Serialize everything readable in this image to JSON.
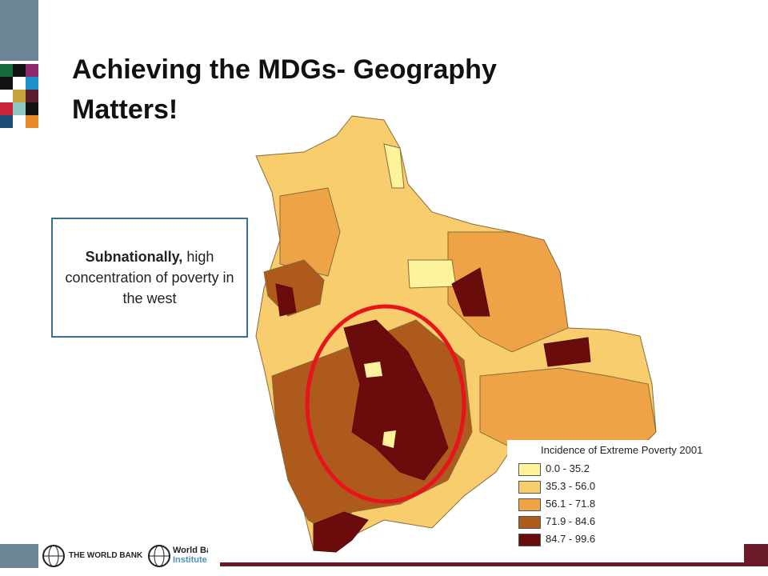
{
  "header": {
    "title": "Achieving the MDGs- Geography Matters!"
  },
  "callout": {
    "bold": "Subnationally,",
    "text": "high concentration of poverty in the west"
  },
  "legend": {
    "title": "Incidence of Extreme Poverty 2001",
    "items": [
      {
        "label": "0.0 - 35.2",
        "color": "#fdf39a"
      },
      {
        "label": "35.3 - 56.0",
        "color": "#f8cd6e"
      },
      {
        "label": "56.1 - 71.8",
        "color": "#eea446"
      },
      {
        "label": "71.9 - 84.6",
        "color": "#ad5a1c"
      },
      {
        "label": "84.7 - 99.6",
        "color": "#6a0c0c"
      }
    ]
  },
  "footer": {
    "bank": "THE WORLD BANK",
    "institute_line1": "World Bank",
    "institute_line2": "Institute"
  }
}
